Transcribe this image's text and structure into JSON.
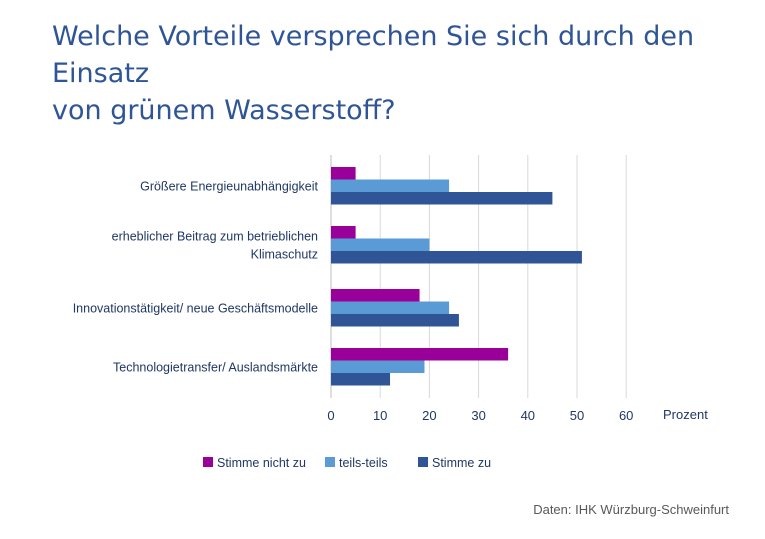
{
  "title_lines": [
    "Welche Vorteile versprechen Sie sich durch den Einsatz",
    "von grünem Wasserstoff?"
  ],
  "source": "Daten: IHK Würzburg-Schweinfurt",
  "colors": {
    "title": "#2f5597",
    "label": "#1f3864",
    "grid": "#d9d9d9"
  },
  "chart_data": {
    "type": "bar",
    "orientation": "horizontal",
    "categories": [
      [
        "Größere Energieunabhängigkeit"
      ],
      [
        "erheblicher Beitrag zum betrieblichen",
        "Klimaschutz"
      ],
      [
        "Innovationstätigkeit/ neue Geschäftsmodelle"
      ],
      [
        "Technologietransfer/ Auslandsmärkte"
      ]
    ],
    "series": [
      {
        "name": "Stimme nicht zu",
        "color": "#990099",
        "values": [
          5,
          5,
          18,
          36
        ]
      },
      {
        "name": "teils-teils",
        "color": "#5b9bd5",
        "values": [
          24,
          20,
          24,
          19
        ]
      },
      {
        "name": "Stimme zu",
        "color": "#2f5597",
        "values": [
          45,
          51,
          26,
          12
        ]
      }
    ],
    "xlim": [
      0,
      60
    ],
    "xticks": [
      0,
      10,
      20,
      30,
      40,
      50,
      60
    ],
    "xlabel": "Prozent",
    "grid": true,
    "legend": "bottom"
  }
}
